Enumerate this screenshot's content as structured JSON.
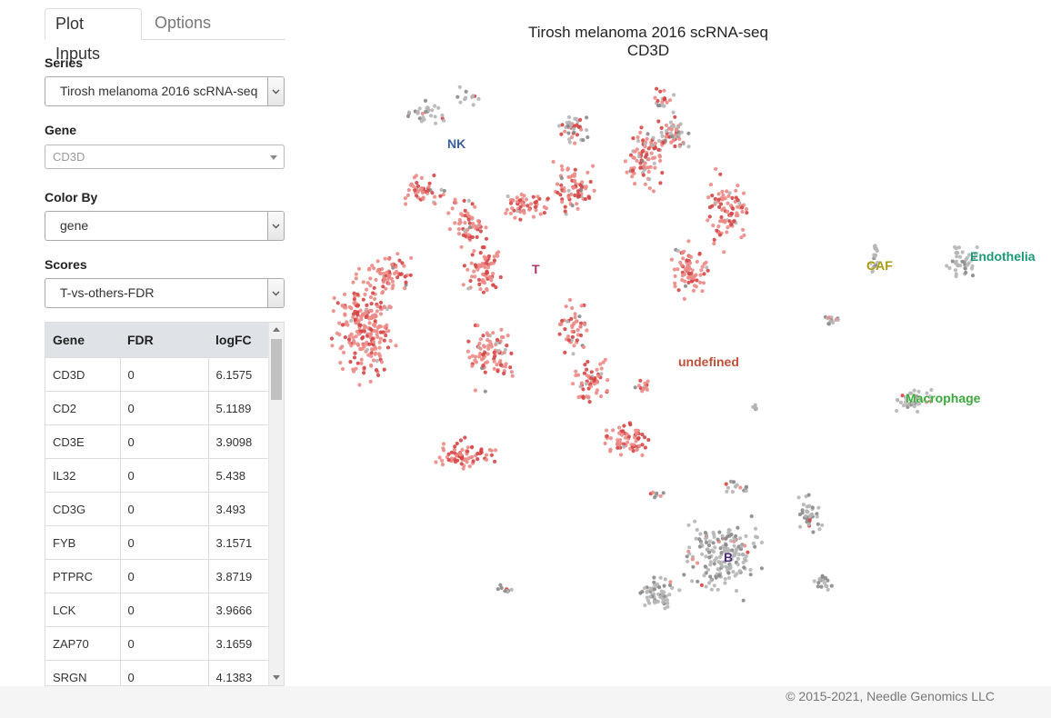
{
  "tabs": {
    "plot_inputs": "Plot Inputs",
    "options": "Options"
  },
  "inputs": {
    "series_label": "Series",
    "series_value": "Tirosh melanoma 2016 scRNA-seq",
    "gene_label": "Gene",
    "gene_value": "CD3D",
    "color_by_label": "Color By",
    "color_by_value": "gene",
    "scores_label": "Scores",
    "scores_value": "T-vs-others-FDR"
  },
  "table": {
    "headers": [
      "Gene",
      "FDR",
      "logFC"
    ],
    "rows": [
      [
        "CD3D",
        "0",
        "6.1575"
      ],
      [
        "CD2",
        "0",
        "5.1189"
      ],
      [
        "CD3E",
        "0",
        "3.9098"
      ],
      [
        "IL32",
        "0",
        "5.438"
      ],
      [
        "CD3G",
        "0",
        "3.493"
      ],
      [
        "FYB",
        "0",
        "3.1571"
      ],
      [
        "PTPRC",
        "0",
        "3.8719"
      ],
      [
        "LCK",
        "0",
        "3.9666"
      ],
      [
        "ZAP70",
        "0",
        "3.1659"
      ],
      [
        "SRGN",
        "0",
        "4.1383"
      ]
    ]
  },
  "plot": {
    "title_line1": "Tirosh melanoma 2016 scRNA-seq",
    "title_line2": "CD3D",
    "clusters": [
      {
        "label": "NK",
        "color": "#3a5fa0"
      },
      {
        "label": "T",
        "color": "#b0306a"
      },
      {
        "label": "CAF",
        "color": "#a89a10"
      },
      {
        "label": "Endothelia",
        "color": "#1a9a78"
      },
      {
        "label": "undefined",
        "color": "#c0503a"
      },
      {
        "label": "Macrophage",
        "color": "#3aa83a"
      },
      {
        "label": "B",
        "color": "#4a2a7a"
      }
    ],
    "point_colors": {
      "high": "#d64545",
      "mid": "#ec8a86",
      "low": "#b5b5b5",
      "dark": "#8a8a8a"
    }
  },
  "footer": {
    "copyright": "© 2015-2021, Needle Genomics LLC"
  }
}
